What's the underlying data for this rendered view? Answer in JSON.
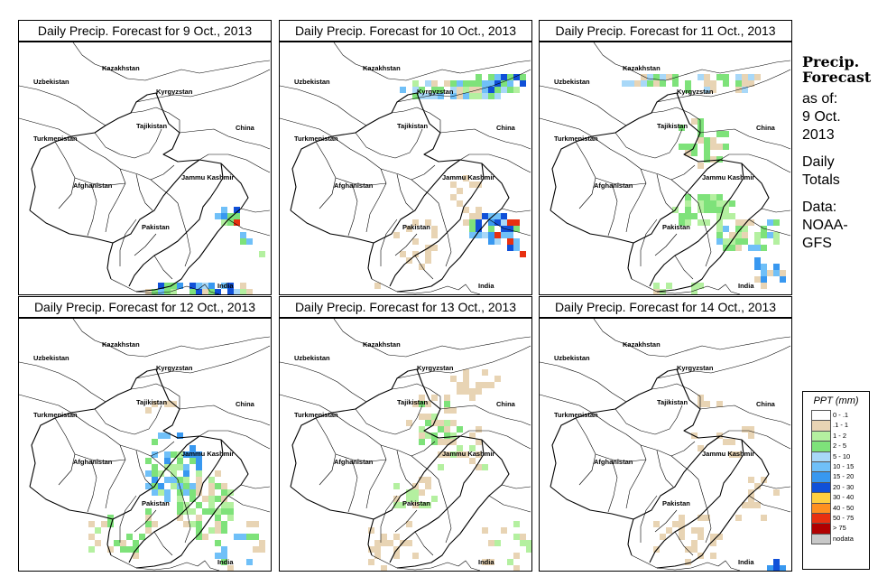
{
  "panels": [
    {
      "title": "Daily Precip. Forecast for  9 Oct., 2013",
      "variant": 0
    },
    {
      "title": "Daily Precip. Forecast for  10 Oct., 2013",
      "variant": 1
    },
    {
      "title": "Daily Precip. Forecast for  11 Oct., 2013",
      "variant": 2
    },
    {
      "title": "Daily Precip. Forecast for  12 Oct., 2013",
      "variant": 3
    },
    {
      "title": "Daily Precip. Forecast for  13 Oct., 2013",
      "variant": 4
    },
    {
      "title": "Daily Precip. Forecast for  14 Oct., 2013",
      "variant": 5
    }
  ],
  "map_labels": {
    "kazakhstan": "Kazakhstan",
    "uzbekistan": "Uzbekistan",
    "kyrgyzstan": "Kyrgyzstan",
    "tajikistan": "Tajikistan",
    "china": "China",
    "turkmenistan": "Turkmenistan",
    "jammu": "Jammu Kashmir",
    "afghanistan": "Afghanistan",
    "pakistan": "Pakistan",
    "india": "India"
  },
  "side": {
    "title_line1": "Precip.",
    "title_line2": "Forecast",
    "asof_line1": "as of:",
    "asof_line2": "9 Oct.",
    "asof_line3": "2013",
    "daily_line1": "Daily",
    "daily_line2": "Totals",
    "data_line1": "Data:",
    "data_line2": "NOAA-",
    "data_line3": "GFS"
  },
  "legend": {
    "title": "PPT (mm)",
    "items": [
      {
        "label": "0 - .1",
        "color": "#ffffff"
      },
      {
        "label": ".1 - 1",
        "color": "#e8d4b4"
      },
      {
        "label": "1 - 2",
        "color": "#b4f0a0"
      },
      {
        "label": "2 - 5",
        "color": "#7ee27a"
      },
      {
        "label": "5 - 10",
        "color": "#a8d8f8"
      },
      {
        "label": "10 - 15",
        "color": "#70c0f8"
      },
      {
        "label": "15 - 20",
        "color": "#3898f0"
      },
      {
        "label": "20 - 30",
        "color": "#1050d8"
      },
      {
        "label": "30 - 40",
        "color": "#ffd040"
      },
      {
        "label": "40 - 50",
        "color": "#ff9020"
      },
      {
        "label": "50 - 75",
        "color": "#e83010"
      },
      {
        "label": "> 75",
        "color": "#b00000"
      },
      {
        "label": "nodata",
        "color": "#c8c8c8"
      }
    ]
  }
}
